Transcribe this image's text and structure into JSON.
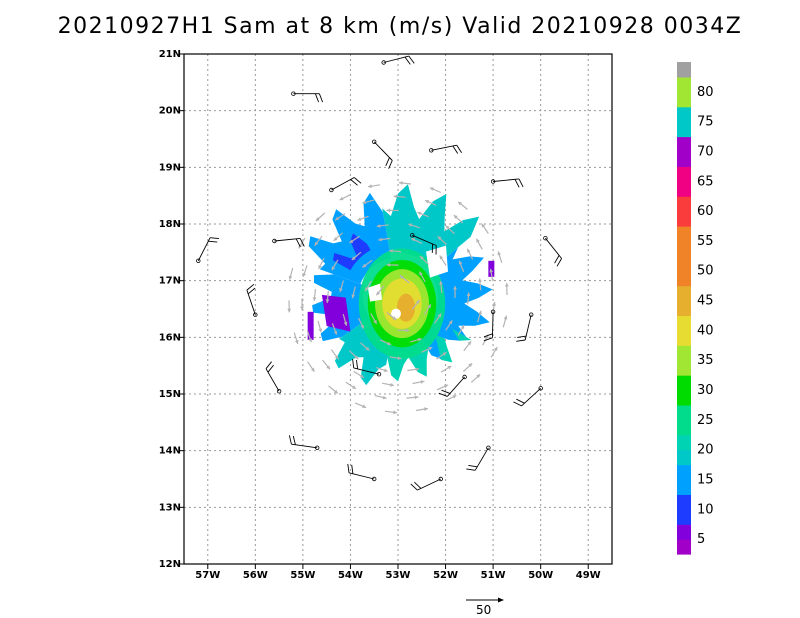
{
  "title": "20210927H1 Sam at 8 km (m/s) Valid 20210928 0034Z",
  "chart_data": {
    "type": "heatmap",
    "title": "20210927H1 Sam at 8 km (m/s) Valid 20210928 0034Z",
    "xlim": [
      -57.5,
      -48.5
    ],
    "ylim": [
      12,
      21
    ],
    "grid": true,
    "x_ticks": [
      -57,
      -56,
      -55,
      -54,
      -53,
      -52,
      -51,
      -50,
      -49
    ],
    "x_tick_labels": [
      "57W",
      "56W",
      "55W",
      "54W",
      "53W",
      "52W",
      "51W",
      "50W",
      "49W"
    ],
    "y_ticks": [
      12,
      13,
      14,
      15,
      16,
      17,
      18,
      19,
      20,
      21
    ],
    "y_tick_labels": [
      "12N",
      "13N",
      "14N",
      "15N",
      "16N",
      "17N",
      "18N",
      "19N",
      "20N",
      "21N"
    ],
    "colorbar": {
      "bins": [
        {
          "label": "",
          "color": "#a000c8"
        },
        {
          "label": "5",
          "color": "#8200dc"
        },
        {
          "label": "",
          "color": "#1e3cff"
        },
        {
          "label": "10",
          "color": "#1e3cff"
        },
        {
          "label": "",
          "color": "#00a0ff"
        },
        {
          "label": "15",
          "color": "#00a0ff"
        },
        {
          "label": "",
          "color": "#00c8c8"
        },
        {
          "label": "20",
          "color": "#00d2b4"
        },
        {
          "label": "",
          "color": "#00dc8c"
        },
        {
          "label": "25",
          "color": "#00dc8c"
        },
        {
          "label": "",
          "color": "#00dc00"
        },
        {
          "label": "30",
          "color": "#00dc00"
        },
        {
          "label": "",
          "color": "#a0e632"
        },
        {
          "label": "35",
          "color": "#a0e632"
        },
        {
          "label": "",
          "color": "#e6dc32"
        },
        {
          "label": "40",
          "color": "#e6dc32"
        },
        {
          "label": "",
          "color": "#e6af2d"
        },
        {
          "label": "45",
          "color": "#e6af2d"
        },
        {
          "label": "",
          "color": "#f08228"
        },
        {
          "label": "50",
          "color": "#f08228"
        },
        {
          "label": "",
          "color": "#f08228"
        },
        {
          "label": "55",
          "color": "#f08228"
        },
        {
          "label": "",
          "color": "#fa3c3c"
        },
        {
          "label": "60",
          "color": "#fa3c3c"
        },
        {
          "label": "",
          "color": "#f00082"
        },
        {
          "label": "65",
          "color": "#f00082"
        },
        {
          "label": "",
          "color": "#a000c8"
        },
        {
          "label": "70",
          "color": "#a000c8"
        },
        {
          "label": "",
          "color": "#00c8c8"
        },
        {
          "label": "75",
          "color": "#00c8c8"
        },
        {
          "label": "",
          "color": "#a0e632"
        },
        {
          "label": "80",
          "color": "#a0e632"
        },
        {
          "label": "",
          "color": "#a0a0a0"
        }
      ]
    },
    "wind_field_center": {
      "lon": -53.0,
      "lat": 16.7
    },
    "reference_vector": {
      "label": "50",
      "value": 50
    }
  },
  "colors": {
    "grid": "#9a9a9a",
    "vectors": "#b4b4b4",
    "barbs": "#000000"
  },
  "reference_vector_label": "50"
}
